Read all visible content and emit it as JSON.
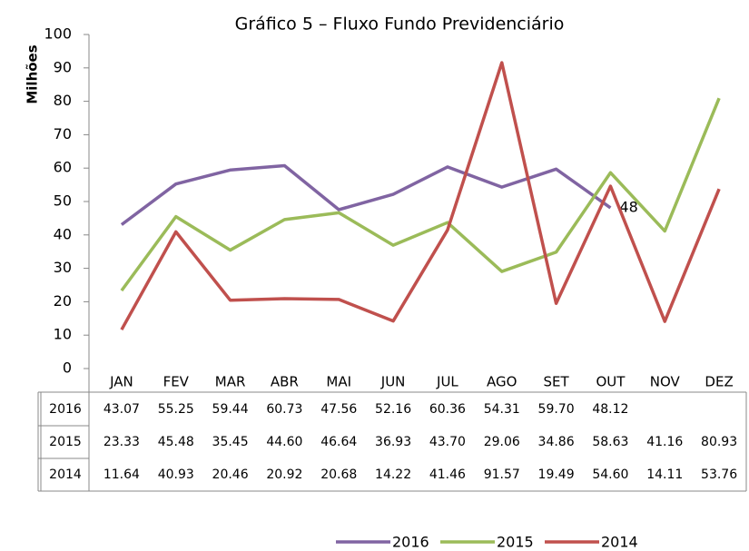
{
  "chart_data": {
    "type": "line",
    "title": "Gráfico  5 – Fluxo Fundo Previdenciário",
    "y_label": "Milhões",
    "categories": [
      "JAN",
      "FEV",
      "MAR",
      "ABR",
      "MAI",
      "JUN",
      "JUL",
      "AGO",
      "SET",
      "OUT",
      "NOV",
      "DEZ"
    ],
    "ylim": [
      0,
      100
    ],
    "yticks": [
      0,
      10,
      20,
      30,
      40,
      50,
      60,
      70,
      80,
      90,
      100
    ],
    "legend": "bottom",
    "series": [
      {
        "name": "2016",
        "color": "#8064a2",
        "values": [
          43.07,
          55.25,
          59.44,
          60.73,
          47.56,
          52.16,
          60.36,
          54.31,
          59.7,
          48.12,
          null,
          null
        ],
        "value_labels": [
          "43.07",
          "55.25",
          "59.44",
          "60.73",
          "47.56",
          "52.16",
          "60.36",
          "54.31",
          "59.70",
          "48.12",
          null,
          null
        ],
        "point_labels": [
          null,
          null,
          null,
          null,
          null,
          null,
          null,
          null,
          null,
          "48",
          null,
          null
        ]
      },
      {
        "name": "2015",
        "color": "#9bbb59",
        "values": [
          23.33,
          45.48,
          35.45,
          44.6,
          46.64,
          36.93,
          43.7,
          29.06,
          34.86,
          58.63,
          41.16,
          80.93
        ],
        "value_labels": [
          "23.33",
          "45.48",
          "35.45",
          "44.60",
          "46.64",
          "36.93",
          "43.70",
          "29.06",
          "34.86",
          "58.63",
          "41.16",
          "80.93"
        ]
      },
      {
        "name": "2014",
        "color": "#c0504d",
        "values": [
          11.64,
          40.93,
          20.46,
          20.92,
          20.68,
          14.22,
          41.46,
          91.57,
          19.49,
          54.6,
          14.11,
          53.76
        ],
        "value_labels": [
          "11.64",
          "40.93",
          "20.46",
          "20.92",
          "20.68",
          "14.22",
          "41.46",
          "91.57",
          "19.49",
          "54.60",
          "14.11",
          "53.76"
        ]
      }
    ]
  }
}
